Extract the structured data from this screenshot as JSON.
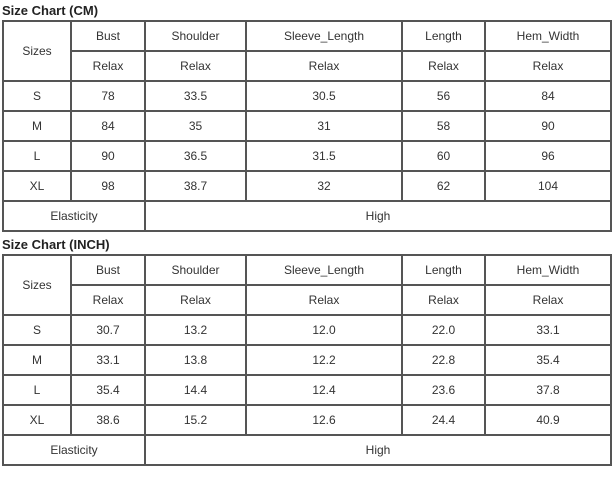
{
  "tables": [
    {
      "title": "Size Chart (CM)",
      "sizes_label": "Sizes",
      "columns": [
        "Bust",
        "Shoulder",
        "Sleeve_Length",
        "Length",
        "Hem_Width"
      ],
      "fit": [
        "Relax",
        "Relax",
        "Relax",
        "Relax",
        "Relax"
      ],
      "rows": [
        [
          "S",
          "78",
          "33.5",
          "30.5",
          "56",
          "84"
        ],
        [
          "M",
          "84",
          "35",
          "31",
          "58",
          "90"
        ],
        [
          "L",
          "90",
          "36.5",
          "31.5",
          "60",
          "96"
        ],
        [
          "XL",
          "98",
          "38.7",
          "32",
          "62",
          "104"
        ]
      ],
      "elasticity_label": "Elasticity",
      "elasticity_value": "High"
    },
    {
      "title": "Size Chart (INCH)",
      "sizes_label": "Sizes",
      "columns": [
        "Bust",
        "Shoulder",
        "Sleeve_Length",
        "Length",
        "Hem_Width"
      ],
      "fit": [
        "Relax",
        "Relax",
        "Relax",
        "Relax",
        "Relax"
      ],
      "rows": [
        [
          "S",
          "30.7",
          "13.2",
          "12.0",
          "22.0",
          "33.1"
        ],
        [
          "M",
          "33.1",
          "13.8",
          "12.2",
          "22.8",
          "35.4"
        ],
        [
          "L",
          "35.4",
          "14.4",
          "12.4",
          "23.6",
          "37.8"
        ],
        [
          "XL",
          "38.6",
          "15.2",
          "12.6",
          "24.4",
          "40.9"
        ]
      ],
      "elasticity_label": "Elasticity",
      "elasticity_value": "High"
    }
  ]
}
